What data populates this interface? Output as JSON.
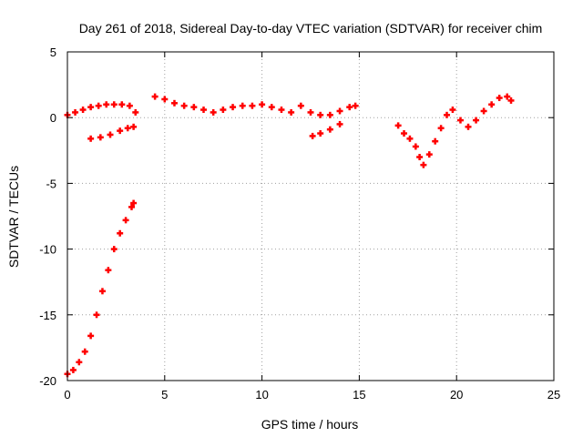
{
  "chart_data": {
    "type": "scatter",
    "title": "Day 261 of 2018, Sidereal Day-to-day VTEC variation (SDTVAR) for receiver chim",
    "xlabel": "GPS time / hours",
    "ylabel": "SDTVAR / TECUs",
    "xlim": [
      0,
      25
    ],
    "ylim": [
      -20,
      5
    ],
    "xticks": [
      0,
      5,
      10,
      15,
      20,
      25
    ],
    "yticks": [
      -20,
      -15,
      -10,
      -5,
      0,
      5
    ],
    "grid": true,
    "series": [
      {
        "name": "SDTVAR",
        "color": "#ff0000",
        "x": [
          0.0,
          0.3,
          0.6,
          0.9,
          1.2,
          1.5,
          1.8,
          2.1,
          2.4,
          2.7,
          3.0,
          3.3,
          3.4,
          0.0,
          0.4,
          0.8,
          1.2,
          1.6,
          2.0,
          2.4,
          2.8,
          3.2,
          3.5,
          1.2,
          1.7,
          2.2,
          2.7,
          3.1,
          3.4,
          4.5,
          5.0,
          5.5,
          6.0,
          6.5,
          7.0,
          7.5,
          8.0,
          8.5,
          9.0,
          9.5,
          10.0,
          10.5,
          11.0,
          11.5,
          12.0,
          12.5,
          13.0,
          13.5,
          14.0,
          14.5,
          14.8,
          12.6,
          13.0,
          13.5,
          14.0,
          17.0,
          17.3,
          17.6,
          17.9,
          18.1,
          18.3,
          18.6,
          18.9,
          19.2,
          19.5,
          19.8,
          20.2,
          20.6,
          21.0,
          21.4,
          21.8,
          22.2,
          22.6,
          22.8
        ],
        "y": [
          -19.5,
          -19.2,
          -18.6,
          -17.8,
          -16.6,
          -15.0,
          -13.2,
          -11.6,
          -10.0,
          -8.8,
          -7.8,
          -6.8,
          -6.5,
          0.2,
          0.4,
          0.6,
          0.8,
          0.9,
          1.0,
          1.0,
          1.0,
          0.9,
          0.4,
          -1.6,
          -1.5,
          -1.3,
          -1.0,
          -0.8,
          -0.7,
          1.6,
          1.4,
          1.1,
          0.9,
          0.8,
          0.6,
          0.4,
          0.6,
          0.8,
          0.9,
          0.9,
          1.0,
          0.8,
          0.6,
          0.4,
          0.9,
          0.4,
          0.2,
          0.2,
          0.5,
          0.8,
          0.9,
          -1.4,
          -1.2,
          -0.9,
          -0.5,
          -0.6,
          -1.2,
          -1.6,
          -2.2,
          -3.0,
          -3.6,
          -2.8,
          -1.8,
          -0.8,
          0.2,
          0.6,
          -0.2,
          -0.7,
          -0.2,
          0.5,
          1.0,
          1.5,
          1.6,
          1.3
        ]
      }
    ]
  }
}
